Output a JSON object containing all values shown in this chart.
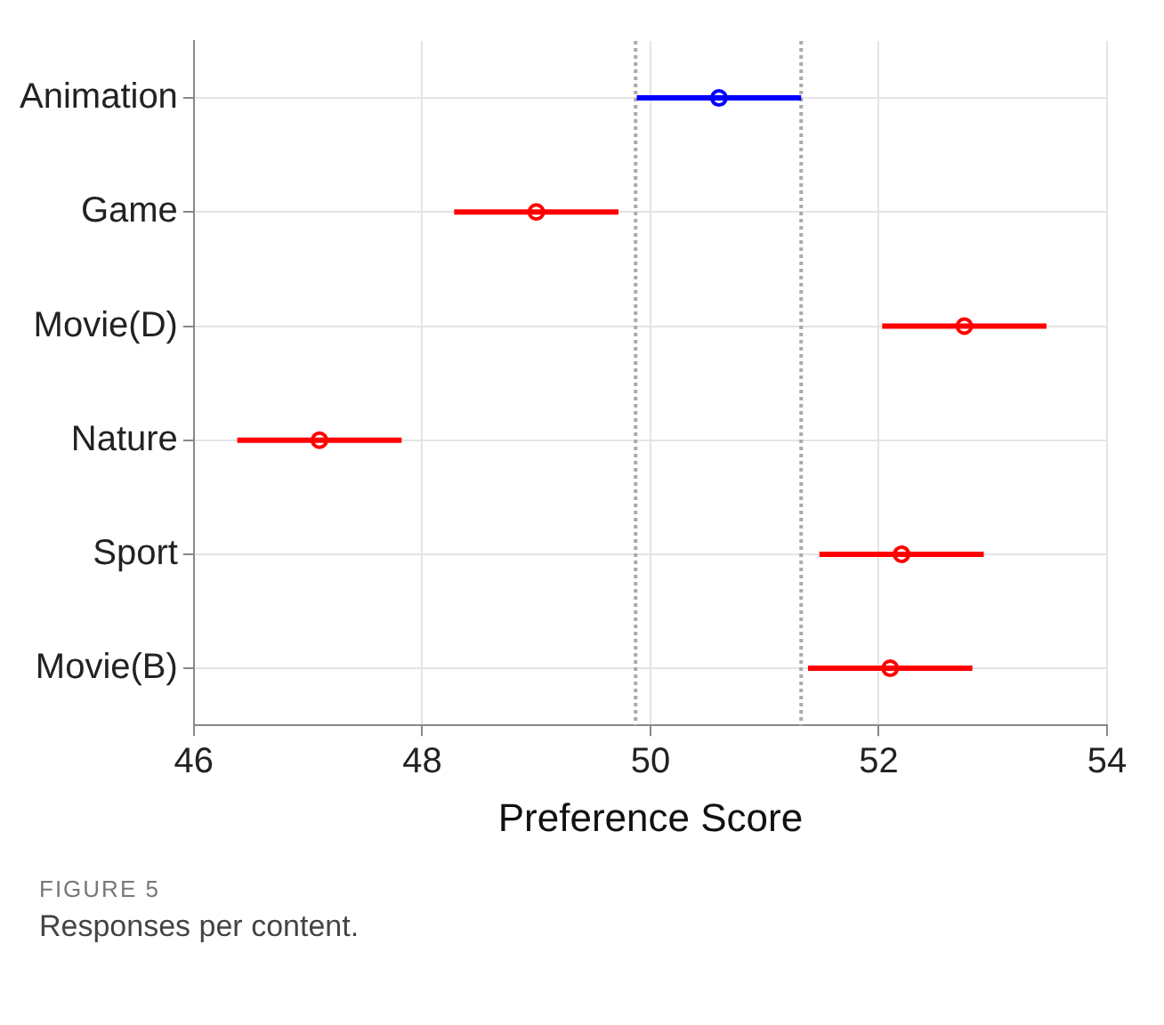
{
  "chart_data": {
    "type": "scatter",
    "xlabel": "Preference Score",
    "categories": [
      "Animation",
      "Game",
      "Movie(D)",
      "Nature",
      "Sport",
      "Movie(B)"
    ],
    "values": [
      50.6,
      49.0,
      52.75,
      47.1,
      52.2,
      52.1
    ],
    "errors": [
      0.72,
      0.72,
      0.72,
      0.72,
      0.72,
      0.72
    ],
    "colors": [
      "#0000ff",
      "#ff0000",
      "#ff0000",
      "#ff0000",
      "#ff0000",
      "#ff0000"
    ],
    "orientation": "horizontal",
    "xlim": [
      46,
      54
    ],
    "xticks": [
      46,
      48,
      50,
      52,
      54
    ],
    "grid": true,
    "marker": "circle",
    "ref_lines": [
      {
        "axis": "x",
        "value": 49.87,
        "color": "#aaaaaa",
        "line_style": "dotted"
      },
      {
        "axis": "x",
        "value": 51.32,
        "color": "#aaaaaa",
        "line_style": "dotted"
      }
    ],
    "annotations": [
      "FIGURE 5",
      "Responses per content."
    ]
  }
}
